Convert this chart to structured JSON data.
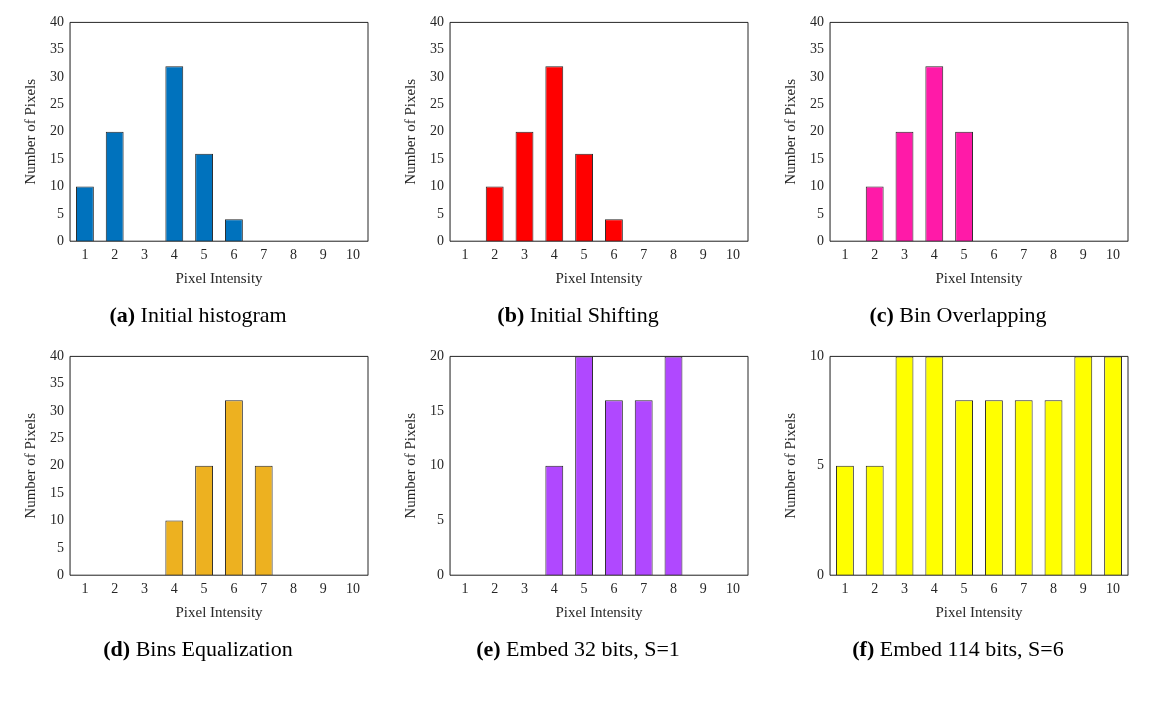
{
  "chart_data": [
    {
      "type": "bar",
      "title": "(a) Initial histogram",
      "xlabel": "Pixel Intensity",
      "ylabel": "Number of Pixels",
      "categories": [
        "1",
        "2",
        "3",
        "4",
        "5",
        "6",
        "7",
        "8",
        "9",
        "10"
      ],
      "values": [
        10,
        20,
        0,
        32,
        16,
        4,
        0,
        0,
        0,
        0
      ],
      "color": "#0072bd",
      "ylim": [
        0,
        40
      ],
      "yticks": [
        0,
        5,
        10,
        15,
        20,
        25,
        30,
        35,
        40
      ],
      "grid": false
    },
    {
      "type": "bar",
      "title": "(b) Initial Shifting",
      "xlabel": "Pixel Intensity",
      "ylabel": "Number of Pixels",
      "categories": [
        "1",
        "2",
        "3",
        "4",
        "5",
        "6",
        "7",
        "8",
        "9",
        "10"
      ],
      "values": [
        0,
        10,
        20,
        32,
        16,
        4,
        0,
        0,
        0,
        0
      ],
      "color": "#ff0000",
      "ylim": [
        0,
        40
      ],
      "yticks": [
        0,
        5,
        10,
        15,
        20,
        25,
        30,
        35,
        40
      ],
      "grid": false
    },
    {
      "type": "bar",
      "title": "(c) Bin Overlapping",
      "xlabel": "Pixel Intensity",
      "ylabel": "Number of Pixels",
      "categories": [
        "1",
        "2",
        "3",
        "4",
        "5",
        "6",
        "7",
        "8",
        "9",
        "10"
      ],
      "values": [
        0,
        10,
        20,
        32,
        20,
        0,
        0,
        0,
        0,
        0
      ],
      "color": "#ff1aa8",
      "ylim": [
        0,
        40
      ],
      "yticks": [
        0,
        5,
        10,
        15,
        20,
        25,
        30,
        35,
        40
      ],
      "grid": false
    },
    {
      "type": "bar",
      "title": "(d) Bins Equalization",
      "xlabel": "Pixel Intensity",
      "ylabel": "Number of Pixels",
      "categories": [
        "1",
        "2",
        "3",
        "4",
        "5",
        "6",
        "7",
        "8",
        "9",
        "10"
      ],
      "values": [
        0,
        0,
        0,
        10,
        20,
        32,
        20,
        0,
        0,
        0
      ],
      "color": "#edb120",
      "ylim": [
        0,
        40
      ],
      "yticks": [
        0,
        5,
        10,
        15,
        20,
        25,
        30,
        35,
        40
      ],
      "grid": false
    },
    {
      "type": "bar",
      "title": "(e) Embed 32 bits, S=1",
      "xlabel": "Pixel Intensity",
      "ylabel": "Number of Pixels",
      "categories": [
        "1",
        "2",
        "3",
        "4",
        "5",
        "6",
        "7",
        "8",
        "9",
        "10"
      ],
      "values": [
        0,
        0,
        0,
        10,
        20,
        16,
        16,
        20,
        0,
        0
      ],
      "color": "#b048ff",
      "ylim": [
        0,
        20
      ],
      "yticks": [
        0,
        5,
        10,
        15,
        20
      ],
      "grid": false
    },
    {
      "type": "bar",
      "title": "(f) Embed 114 bits, S=6",
      "xlabel": "Pixel Intensity",
      "ylabel": "Number of Pixels",
      "categories": [
        "1",
        "2",
        "3",
        "4",
        "5",
        "6",
        "7",
        "8",
        "9",
        "10"
      ],
      "values": [
        5,
        5,
        10,
        10,
        8,
        8,
        8,
        8,
        10,
        10
      ],
      "color": "#ffff00",
      "ylim": [
        0,
        10
      ],
      "yticks": [
        0,
        5,
        10
      ],
      "grid": false
    }
  ]
}
